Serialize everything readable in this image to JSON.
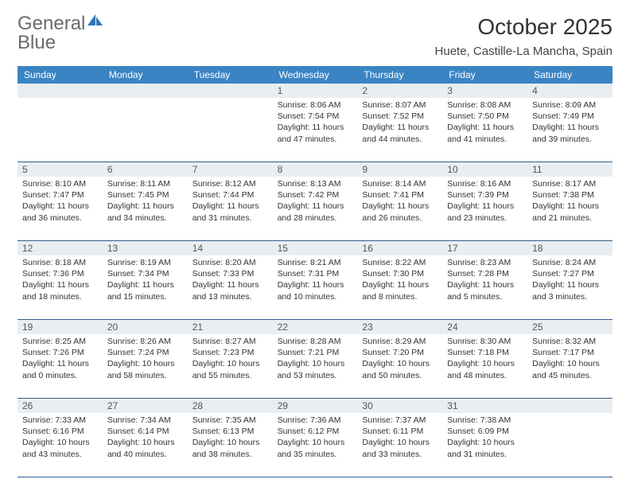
{
  "logo": {
    "word1": "General",
    "word2": "Blue"
  },
  "header": {
    "title": "October 2025",
    "location": "Huete, Castille-La Mancha, Spain"
  },
  "colors": {
    "header_bg": "#3a84c4",
    "header_text": "#ffffff",
    "daynum_bg": "#e9eef2",
    "row_border": "#2f5f8f",
    "logo_gray": "#6a6a6a",
    "logo_blue": "#2f77bb"
  },
  "weekdays": [
    "Sunday",
    "Monday",
    "Tuesday",
    "Wednesday",
    "Thursday",
    "Friday",
    "Saturday"
  ],
  "weeks": [
    [
      null,
      null,
      null,
      {
        "n": "1",
        "sunrise": "Sunrise: 8:06 AM",
        "sunset": "Sunset: 7:54 PM",
        "daylight1": "Daylight: 11 hours",
        "daylight2": "and 47 minutes."
      },
      {
        "n": "2",
        "sunrise": "Sunrise: 8:07 AM",
        "sunset": "Sunset: 7:52 PM",
        "daylight1": "Daylight: 11 hours",
        "daylight2": "and 44 minutes."
      },
      {
        "n": "3",
        "sunrise": "Sunrise: 8:08 AM",
        "sunset": "Sunset: 7:50 PM",
        "daylight1": "Daylight: 11 hours",
        "daylight2": "and 41 minutes."
      },
      {
        "n": "4",
        "sunrise": "Sunrise: 8:09 AM",
        "sunset": "Sunset: 7:49 PM",
        "daylight1": "Daylight: 11 hours",
        "daylight2": "and 39 minutes."
      }
    ],
    [
      {
        "n": "5",
        "sunrise": "Sunrise: 8:10 AM",
        "sunset": "Sunset: 7:47 PM",
        "daylight1": "Daylight: 11 hours",
        "daylight2": "and 36 minutes."
      },
      {
        "n": "6",
        "sunrise": "Sunrise: 8:11 AM",
        "sunset": "Sunset: 7:45 PM",
        "daylight1": "Daylight: 11 hours",
        "daylight2": "and 34 minutes."
      },
      {
        "n": "7",
        "sunrise": "Sunrise: 8:12 AM",
        "sunset": "Sunset: 7:44 PM",
        "daylight1": "Daylight: 11 hours",
        "daylight2": "and 31 minutes."
      },
      {
        "n": "8",
        "sunrise": "Sunrise: 8:13 AM",
        "sunset": "Sunset: 7:42 PM",
        "daylight1": "Daylight: 11 hours",
        "daylight2": "and 28 minutes."
      },
      {
        "n": "9",
        "sunrise": "Sunrise: 8:14 AM",
        "sunset": "Sunset: 7:41 PM",
        "daylight1": "Daylight: 11 hours",
        "daylight2": "and 26 minutes."
      },
      {
        "n": "10",
        "sunrise": "Sunrise: 8:16 AM",
        "sunset": "Sunset: 7:39 PM",
        "daylight1": "Daylight: 11 hours",
        "daylight2": "and 23 minutes."
      },
      {
        "n": "11",
        "sunrise": "Sunrise: 8:17 AM",
        "sunset": "Sunset: 7:38 PM",
        "daylight1": "Daylight: 11 hours",
        "daylight2": "and 21 minutes."
      }
    ],
    [
      {
        "n": "12",
        "sunrise": "Sunrise: 8:18 AM",
        "sunset": "Sunset: 7:36 PM",
        "daylight1": "Daylight: 11 hours",
        "daylight2": "and 18 minutes."
      },
      {
        "n": "13",
        "sunrise": "Sunrise: 8:19 AM",
        "sunset": "Sunset: 7:34 PM",
        "daylight1": "Daylight: 11 hours",
        "daylight2": "and 15 minutes."
      },
      {
        "n": "14",
        "sunrise": "Sunrise: 8:20 AM",
        "sunset": "Sunset: 7:33 PM",
        "daylight1": "Daylight: 11 hours",
        "daylight2": "and 13 minutes."
      },
      {
        "n": "15",
        "sunrise": "Sunrise: 8:21 AM",
        "sunset": "Sunset: 7:31 PM",
        "daylight1": "Daylight: 11 hours",
        "daylight2": "and 10 minutes."
      },
      {
        "n": "16",
        "sunrise": "Sunrise: 8:22 AM",
        "sunset": "Sunset: 7:30 PM",
        "daylight1": "Daylight: 11 hours",
        "daylight2": "and 8 minutes."
      },
      {
        "n": "17",
        "sunrise": "Sunrise: 8:23 AM",
        "sunset": "Sunset: 7:28 PM",
        "daylight1": "Daylight: 11 hours",
        "daylight2": "and 5 minutes."
      },
      {
        "n": "18",
        "sunrise": "Sunrise: 8:24 AM",
        "sunset": "Sunset: 7:27 PM",
        "daylight1": "Daylight: 11 hours",
        "daylight2": "and 3 minutes."
      }
    ],
    [
      {
        "n": "19",
        "sunrise": "Sunrise: 8:25 AM",
        "sunset": "Sunset: 7:26 PM",
        "daylight1": "Daylight: 11 hours",
        "daylight2": "and 0 minutes."
      },
      {
        "n": "20",
        "sunrise": "Sunrise: 8:26 AM",
        "sunset": "Sunset: 7:24 PM",
        "daylight1": "Daylight: 10 hours",
        "daylight2": "and 58 minutes."
      },
      {
        "n": "21",
        "sunrise": "Sunrise: 8:27 AM",
        "sunset": "Sunset: 7:23 PM",
        "daylight1": "Daylight: 10 hours",
        "daylight2": "and 55 minutes."
      },
      {
        "n": "22",
        "sunrise": "Sunrise: 8:28 AM",
        "sunset": "Sunset: 7:21 PM",
        "daylight1": "Daylight: 10 hours",
        "daylight2": "and 53 minutes."
      },
      {
        "n": "23",
        "sunrise": "Sunrise: 8:29 AM",
        "sunset": "Sunset: 7:20 PM",
        "daylight1": "Daylight: 10 hours",
        "daylight2": "and 50 minutes."
      },
      {
        "n": "24",
        "sunrise": "Sunrise: 8:30 AM",
        "sunset": "Sunset: 7:18 PM",
        "daylight1": "Daylight: 10 hours",
        "daylight2": "and 48 minutes."
      },
      {
        "n": "25",
        "sunrise": "Sunrise: 8:32 AM",
        "sunset": "Sunset: 7:17 PM",
        "daylight1": "Daylight: 10 hours",
        "daylight2": "and 45 minutes."
      }
    ],
    [
      {
        "n": "26",
        "sunrise": "Sunrise: 7:33 AM",
        "sunset": "Sunset: 6:16 PM",
        "daylight1": "Daylight: 10 hours",
        "daylight2": "and 43 minutes."
      },
      {
        "n": "27",
        "sunrise": "Sunrise: 7:34 AM",
        "sunset": "Sunset: 6:14 PM",
        "daylight1": "Daylight: 10 hours",
        "daylight2": "and 40 minutes."
      },
      {
        "n": "28",
        "sunrise": "Sunrise: 7:35 AM",
        "sunset": "Sunset: 6:13 PM",
        "daylight1": "Daylight: 10 hours",
        "daylight2": "and 38 minutes."
      },
      {
        "n": "29",
        "sunrise": "Sunrise: 7:36 AM",
        "sunset": "Sunset: 6:12 PM",
        "daylight1": "Daylight: 10 hours",
        "daylight2": "and 35 minutes."
      },
      {
        "n": "30",
        "sunrise": "Sunrise: 7:37 AM",
        "sunset": "Sunset: 6:11 PM",
        "daylight1": "Daylight: 10 hours",
        "daylight2": "and 33 minutes."
      },
      {
        "n": "31",
        "sunrise": "Sunrise: 7:38 AM",
        "sunset": "Sunset: 6:09 PM",
        "daylight1": "Daylight: 10 hours",
        "daylight2": "and 31 minutes."
      },
      null
    ]
  ]
}
